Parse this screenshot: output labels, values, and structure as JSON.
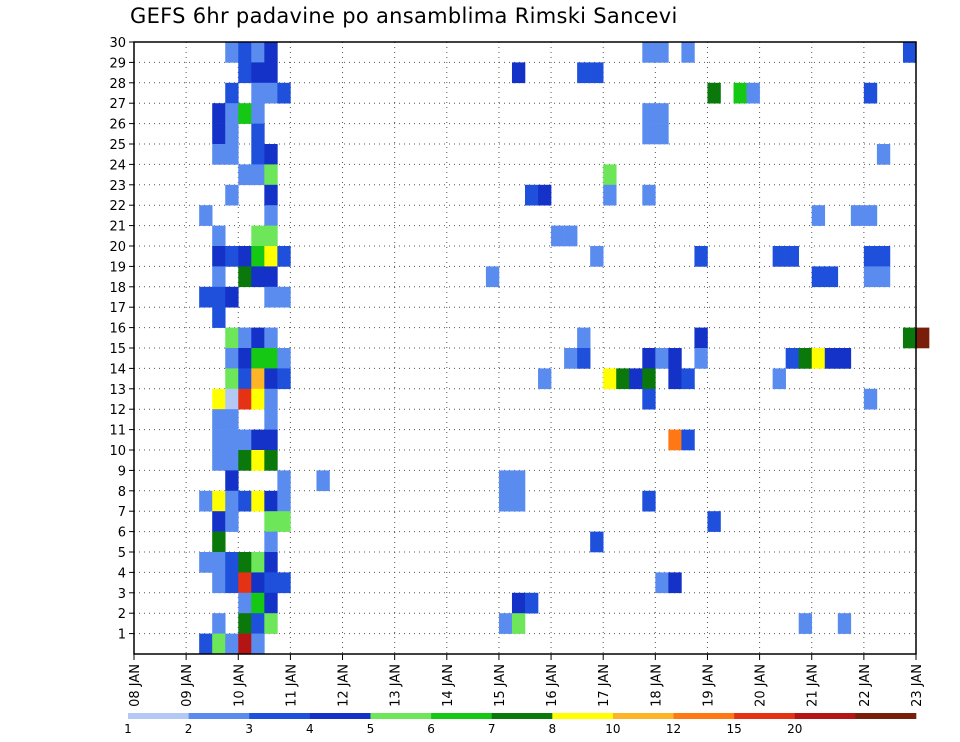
{
  "chart_data": {
    "type": "heatmap",
    "title": "GEFS 6hr padavine po ansamblima Rimski Sancevi",
    "xlabel": "",
    "ylabel": "",
    "x_ticks": [
      "08 JAN",
      "09 JAN",
      "10 JAN",
      "11 JAN",
      "12 JAN",
      "13 JAN",
      "14 JAN",
      "15 JAN",
      "16 JAN",
      "17 JAN",
      "18 JAN",
      "19 JAN",
      "20 JAN",
      "21 JAN",
      "22 JAN",
      "23 JAN"
    ],
    "xlim_days": [
      8,
      23
    ],
    "y_ticks": [
      1,
      2,
      3,
      4,
      5,
      6,
      7,
      8,
      9,
      10,
      11,
      12,
      13,
      14,
      15,
      16,
      17,
      18,
      19,
      20,
      21,
      22,
      23,
      24,
      25,
      26,
      27,
      28,
      29,
      30
    ],
    "ylim": [
      0,
      30
    ],
    "grid": true,
    "step_hours": 6,
    "legend": {
      "placement": "bottom",
      "labels": [
        "1",
        "2",
        "3",
        "4",
        "5",
        "6",
        "7",
        "8",
        "10",
        "12",
        "15",
        "20"
      ],
      "colors": [
        "#b4c8f5",
        "#5a8cf0",
        "#1e50dc",
        "#1432c8",
        "#6ee65a",
        "#14c814",
        "#0a780a",
        "#ffff00",
        "#ffb428",
        "#ff7814",
        "#e63214",
        "#b41414",
        "#781e0a"
      ]
    },
    "cells": [
      [
        30,
        9.75,
        1
      ],
      [
        30,
        10.0,
        2
      ],
      [
        30,
        10.25,
        1
      ],
      [
        30,
        10.5,
        3
      ],
      [
        30,
        17.75,
        1
      ],
      [
        30,
        18.0,
        1
      ],
      [
        30,
        18.5,
        1
      ],
      [
        30,
        22.75,
        2
      ],
      [
        29,
        10.0,
        2
      ],
      [
        29,
        10.25,
        3
      ],
      [
        29,
        10.5,
        3
      ],
      [
        29,
        15.25,
        3
      ],
      [
        29,
        16.5,
        2
      ],
      [
        29,
        16.75,
        2
      ],
      [
        28,
        9.75,
        2
      ],
      [
        28,
        10.25,
        1
      ],
      [
        28,
        10.5,
        1
      ],
      [
        28,
        10.75,
        2
      ],
      [
        28,
        19.0,
        6
      ],
      [
        28,
        19.5,
        5
      ],
      [
        28,
        19.75,
        1
      ],
      [
        28,
        22.0,
        2
      ],
      [
        27,
        9.5,
        3
      ],
      [
        27,
        9.75,
        1
      ],
      [
        27,
        10.0,
        5
      ],
      [
        27,
        10.25,
        1
      ],
      [
        27,
        17.75,
        1
      ],
      [
        27,
        18.0,
        1
      ],
      [
        26,
        9.5,
        3
      ],
      [
        26,
        9.75,
        1
      ],
      [
        26,
        10.25,
        2
      ],
      [
        26,
        17.75,
        1
      ],
      [
        26,
        18.0,
        1
      ],
      [
        25,
        9.5,
        1
      ],
      [
        25,
        9.75,
        1
      ],
      [
        25,
        10.25,
        2
      ],
      [
        25,
        10.5,
        3
      ],
      [
        25,
        22.25,
        1
      ],
      [
        24,
        10.0,
        1
      ],
      [
        24,
        10.25,
        1
      ],
      [
        24,
        10.5,
        4
      ],
      [
        24,
        17.0,
        4
      ],
      [
        23,
        9.75,
        1
      ],
      [
        23,
        10.5,
        3
      ],
      [
        23,
        15.5,
        2
      ],
      [
        23,
        15.75,
        3
      ],
      [
        23,
        17.0,
        1
      ],
      [
        23,
        17.75,
        1
      ],
      [
        22,
        9.25,
        1
      ],
      [
        22,
        10.5,
        1
      ],
      [
        22,
        21.0,
        1
      ],
      [
        22,
        21.75,
        1
      ],
      [
        22,
        22.0,
        1
      ],
      [
        21,
        9.5,
        1
      ],
      [
        21,
        10.25,
        4
      ],
      [
        21,
        10.5,
        4
      ],
      [
        21,
        16.0,
        1
      ],
      [
        21,
        16.25,
        1
      ],
      [
        20,
        9.5,
        3
      ],
      [
        20,
        9.75,
        2
      ],
      [
        20,
        10.0,
        3
      ],
      [
        20,
        10.25,
        5
      ],
      [
        20,
        10.5,
        7
      ],
      [
        20,
        10.75,
        2
      ],
      [
        20,
        16.75,
        1
      ],
      [
        20,
        18.75,
        2
      ],
      [
        20,
        20.25,
        2
      ],
      [
        20,
        20.5,
        2
      ],
      [
        20,
        22.0,
        2
      ],
      [
        20,
        22.25,
        2
      ],
      [
        19,
        9.5,
        1
      ],
      [
        19,
        10.0,
        6
      ],
      [
        19,
        10.25,
        3
      ],
      [
        19,
        10.5,
        3
      ],
      [
        19,
        14.75,
        1
      ],
      [
        19,
        21.0,
        2
      ],
      [
        19,
        21.25,
        2
      ],
      [
        19,
        22.0,
        1
      ],
      [
        19,
        22.25,
        1
      ],
      [
        18,
        9.25,
        2
      ],
      [
        18,
        9.5,
        2
      ],
      [
        18,
        9.75,
        3
      ],
      [
        18,
        10.5,
        1
      ],
      [
        18,
        10.75,
        1
      ],
      [
        17,
        9.5,
        2
      ],
      [
        16,
        9.75,
        4
      ],
      [
        16,
        10.0,
        1
      ],
      [
        16,
        10.25,
        3
      ],
      [
        16,
        10.5,
        1
      ],
      [
        16,
        16.5,
        1
      ],
      [
        16,
        18.75,
        3
      ],
      [
        16,
        22.75,
        6
      ],
      [
        16,
        23.0,
        12
      ],
      [
        15,
        9.75,
        1
      ],
      [
        15,
        10.0,
        3
      ],
      [
        15,
        10.25,
        5
      ],
      [
        15,
        10.5,
        5
      ],
      [
        15,
        10.75,
        1
      ],
      [
        15,
        16.25,
        1
      ],
      [
        15,
        16.5,
        2
      ],
      [
        15,
        17.75,
        3
      ],
      [
        15,
        18.0,
        1
      ],
      [
        15,
        18.25,
        3
      ],
      [
        15,
        18.75,
        1
      ],
      [
        15,
        20.5,
        2
      ],
      [
        15,
        20.75,
        6
      ],
      [
        15,
        21.0,
        7
      ],
      [
        15,
        21.25,
        3
      ],
      [
        15,
        21.5,
        3
      ],
      [
        14,
        9.75,
        4
      ],
      [
        14,
        10.0,
        2
      ],
      [
        14,
        10.25,
        8
      ],
      [
        14,
        10.5,
        3
      ],
      [
        14,
        10.75,
        2
      ],
      [
        14,
        15.75,
        1
      ],
      [
        14,
        17.0,
        7
      ],
      [
        14,
        17.25,
        6
      ],
      [
        14,
        17.5,
        3
      ],
      [
        14,
        17.75,
        6
      ],
      [
        14,
        18.25,
        3
      ],
      [
        14,
        18.5,
        2
      ],
      [
        14,
        20.25,
        1
      ],
      [
        13,
        9.5,
        7
      ],
      [
        13,
        9.75,
        0
      ],
      [
        13,
        10.0,
        10
      ],
      [
        13,
        10.25,
        7
      ],
      [
        13,
        10.5,
        1
      ],
      [
        13,
        17.75,
        2
      ],
      [
        13,
        22.0,
        1
      ],
      [
        12,
        9.5,
        1
      ],
      [
        12,
        9.75,
        1
      ],
      [
        12,
        10.5,
        1
      ],
      [
        11,
        9.5,
        1
      ],
      [
        11,
        9.75,
        1
      ],
      [
        11,
        10.0,
        1
      ],
      [
        11,
        10.25,
        3
      ],
      [
        11,
        10.5,
        3
      ],
      [
        11,
        18.25,
        9
      ],
      [
        11,
        18.5,
        2
      ],
      [
        10,
        9.5,
        1
      ],
      [
        10,
        9.75,
        1
      ],
      [
        10,
        10.0,
        6
      ],
      [
        10,
        10.25,
        7
      ],
      [
        10,
        10.5,
        6
      ],
      [
        9,
        9.75,
        3
      ],
      [
        9,
        10.75,
        1
      ],
      [
        9,
        11.5,
        1
      ],
      [
        9,
        15.0,
        1
      ],
      [
        9,
        15.25,
        1
      ],
      [
        8,
        9.25,
        1
      ],
      [
        8,
        9.5,
        7
      ],
      [
        8,
        9.75,
        1
      ],
      [
        8,
        10.0,
        2
      ],
      [
        8,
        10.25,
        7
      ],
      [
        8,
        10.5,
        3
      ],
      [
        8,
        10.75,
        1
      ],
      [
        8,
        15.0,
        1
      ],
      [
        8,
        15.25,
        1
      ],
      [
        8,
        17.75,
        2
      ],
      [
        7,
        9.5,
        3
      ],
      [
        7,
        9.75,
        1
      ],
      [
        7,
        10.5,
        4
      ],
      [
        7,
        10.75,
        4
      ],
      [
        7,
        19.0,
        2
      ],
      [
        6,
        9.5,
        6
      ],
      [
        6,
        10.5,
        1
      ],
      [
        6,
        16.75,
        2
      ],
      [
        5,
        9.25,
        1
      ],
      [
        5,
        9.5,
        1
      ],
      [
        5,
        9.75,
        2
      ],
      [
        5,
        10.0,
        6
      ],
      [
        5,
        10.25,
        4
      ],
      [
        5,
        10.5,
        3
      ],
      [
        4,
        9.5,
        1
      ],
      [
        4,
        9.75,
        2
      ],
      [
        4,
        10.0,
        10
      ],
      [
        4,
        10.25,
        3
      ],
      [
        4,
        10.5,
        2
      ],
      [
        4,
        10.75,
        2
      ],
      [
        4,
        18.0,
        1
      ],
      [
        4,
        18.25,
        3
      ],
      [
        3,
        10.0,
        1
      ],
      [
        3,
        10.25,
        5
      ],
      [
        3,
        10.5,
        3
      ],
      [
        3,
        15.25,
        3
      ],
      [
        3,
        15.5,
        2
      ],
      [
        2,
        9.5,
        1
      ],
      [
        2,
        10.0,
        6
      ],
      [
        2,
        10.25,
        2
      ],
      [
        2,
        10.5,
        4
      ],
      [
        2,
        15.0,
        1
      ],
      [
        2,
        15.25,
        4
      ],
      [
        2,
        20.75,
        1
      ],
      [
        2,
        21.5,
        1
      ],
      [
        1,
        9.25,
        2
      ],
      [
        1,
        9.5,
        4
      ],
      [
        1,
        9.75,
        1
      ],
      [
        1,
        10.0,
        11
      ],
      [
        1,
        10.25,
        1
      ]
    ]
  }
}
